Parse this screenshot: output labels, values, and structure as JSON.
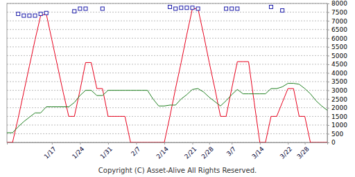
{
  "chart_data": {
    "type": "line",
    "categories": [
      null,
      null,
      null,
      null,
      null,
      null,
      null,
      null,
      "1/17",
      null,
      null,
      null,
      null,
      "1/24",
      null,
      null,
      null,
      null,
      "1/31",
      null,
      null,
      null,
      null,
      "2/7",
      null,
      null,
      null,
      null,
      "2/14",
      null,
      null,
      null,
      null,
      "2/21",
      null,
      null,
      "2/28",
      null,
      null,
      null,
      "3/7",
      null,
      null,
      null,
      null,
      "3/14",
      null,
      null,
      null,
      null,
      "3/22",
      null,
      null,
      "3/28",
      null,
      null,
      null,
      null
    ],
    "series": [
      {
        "type": "line",
        "color": "#e8001c",
        "values": [
          0,
          0,
          1400,
          2900,
          4400,
          5900,
          7300,
          7400,
          5900,
          4400,
          2900,
          1500,
          1500,
          3000,
          4600,
          4600,
          3100,
          3100,
          1500,
          1500,
          1500,
          1500,
          0,
          0,
          0,
          0,
          0,
          0,
          0,
          1500,
          3100,
          4600,
          6200,
          7700,
          7700,
          6200,
          4600,
          3100,
          1500,
          1500,
          3100,
          4650,
          4650,
          4650,
          2300,
          0,
          0,
          1500,
          1500,
          2300,
          3100,
          3100,
          1500,
          1500,
          0,
          0,
          0,
          0
        ]
      },
      {
        "type": "line",
        "color": "#208020",
        "values": [
          560,
          560,
          900,
          1200,
          1450,
          1700,
          1700,
          2050,
          2050,
          2050,
          2050,
          2050,
          2300,
          2700,
          3000,
          3000,
          2700,
          2700,
          3000,
          3000,
          3000,
          3000,
          3000,
          3000,
          3000,
          3000,
          2500,
          2100,
          2100,
          2150,
          2150,
          2500,
          2750,
          3050,
          3100,
          2900,
          2600,
          2350,
          2100,
          2400,
          2750,
          3050,
          2800,
          2800,
          2800,
          2800,
          2800,
          3100,
          3100,
          3200,
          3400,
          3400,
          3350,
          3100,
          2800,
          2400,
          2100,
          1850
        ]
      },
      {
        "type": "scatter",
        "color": "#1a1aa8",
        "marker": "square",
        "values": [
          null,
          null,
          7400,
          7300,
          7300,
          7300,
          7400,
          7450,
          null,
          null,
          null,
          null,
          7550,
          7700,
          7700,
          null,
          null,
          7700,
          null,
          null,
          null,
          null,
          null,
          null,
          null,
          null,
          null,
          null,
          null,
          7800,
          7700,
          7750,
          7750,
          7750,
          7700,
          null,
          null,
          null,
          null,
          7700,
          7700,
          7700,
          null,
          null,
          null,
          null,
          null,
          7800,
          null,
          7600,
          null,
          null,
          null,
          null,
          null,
          null,
          null,
          null
        ]
      }
    ],
    "ylim": [
      0,
      8000
    ],
    "yticks": [
      0,
      500,
      1000,
      1500,
      2000,
      2500,
      3000,
      3500,
      4000,
      4500,
      5000,
      5500,
      6000,
      6500,
      7000,
      7500,
      8000
    ],
    "grid": true,
    "annotations": [
      "Copyright (C) Asset-Alive All Rights Reserved."
    ]
  }
}
